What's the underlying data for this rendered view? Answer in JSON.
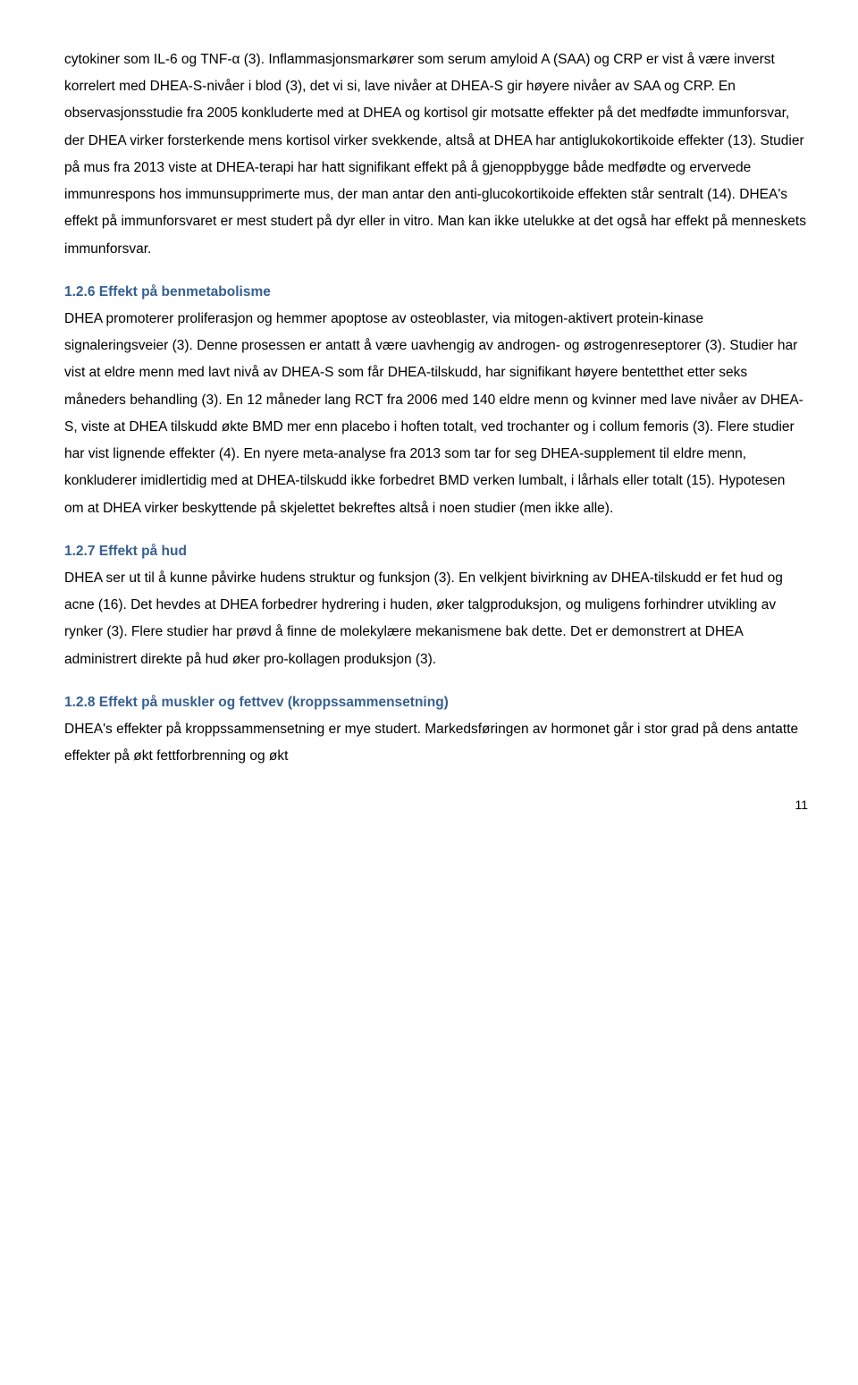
{
  "paragraphs": {
    "p1": "cytokiner som IL-6 og TNF-α (3). Inflammasjonsmarkører som serum amyloid A (SAA) og CRP er vist å være inverst korrelert med DHEA-S-nivåer i blod (3), det vi si, lave nivåer at DHEA-S gir høyere nivåer av SAA og CRP. En observasjonsstudie fra 2005 konkluderte med at DHEA og kortisol gir motsatte effekter på det medfødte immunforsvar, der DHEA virker forsterkende mens kortisol virker svekkende, altså at DHEA har antiglukokortikoide effekter (13). Studier på mus fra 2013 viste at DHEA-terapi har hatt signifikant effekt på å gjenoppbygge både medfødte og ervervede immunrespons hos immunsupprimerte mus, der man antar den anti-glucokortikoide effekten står sentralt (14). DHEA's effekt på immunforsvaret er mest studert på dyr eller in vitro. Man kan ikke utelukke at det også har effekt på menneskets immunforsvar.",
    "h1": "1.2.6 Effekt på benmetabolisme",
    "p2": "DHEA promoterer proliferasjon og hemmer apoptose av osteoblaster, via mitogen-aktivert protein-kinase signaleringsveier (3). Denne prosessen er antatt å være uavhengig av androgen- og østrogenreseptorer (3). Studier har vist at eldre menn med lavt nivå av DHEA-S som får DHEA-tilskudd, har signifikant høyere bentetthet etter seks måneders behandling (3). En 12 måneder lang RCT fra 2006 med 140 eldre menn og kvinner med lave nivåer av DHEA-S, viste at DHEA tilskudd økte BMD mer enn placebo i hoften totalt, ved trochanter og i collum femoris (3). Flere studier har vist lignende effekter (4). En nyere meta-analyse fra 2013 som tar for seg DHEA-supplement til eldre menn, konkluderer imidlertidig med at DHEA-tilskudd ikke forbedret BMD verken lumbalt, i lårhals eller totalt (15). Hypotesen om at DHEA virker beskyttende på skjelettet bekreftes altså i noen studier (men ikke alle).",
    "h2": "1.2.7 Effekt på hud",
    "p3": "DHEA ser ut til å kunne påvirke hudens struktur og funksjon (3). En velkjent bivirkning av DHEA-tilskudd er fet hud og acne (16). Det hevdes at DHEA forbedrer hydrering i huden, øker talgproduksjon, og muligens forhindrer utvikling av rynker (3). Flere studier har prøvd å finne de molekylære mekanismene bak dette. Det er demonstrert at DHEA administrert direkte på hud øker pro-kollagen produksjon (3).",
    "h3": "1.2.8 Effekt på muskler og fettvev (kroppssammensetning)",
    "p4": "DHEA's effekter på kroppssammensetning er mye studert. Markedsføringen av hormonet går i stor grad på dens antatte effekter på økt fettforbrenning og økt"
  },
  "pageNumber": "11"
}
